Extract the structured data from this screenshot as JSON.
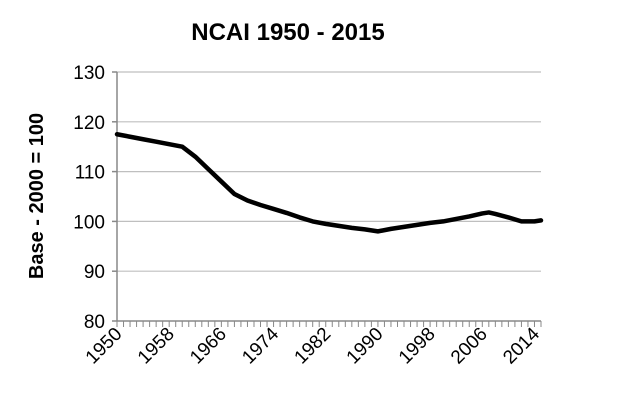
{
  "chart_data": {
    "type": "line",
    "title": "NCAI 1950 - 2015",
    "xlabel": "",
    "ylabel": "Base - 2000 = 100",
    "xlim": [
      1950,
      2015
    ],
    "ylim": [
      80,
      130
    ],
    "y_ticks": [
      80,
      90,
      100,
      110,
      120,
      130
    ],
    "x_tick_labels": [
      "1950",
      "1958",
      "1966",
      "1974",
      "1982",
      "1990",
      "1998",
      "2006",
      "2014"
    ],
    "grid": "horizontal",
    "legend": "none",
    "line_color": "#000000",
    "grid_color": "#bfbfbf",
    "series": [
      {
        "x": [
          1950,
          1952,
          1954,
          1956,
          1958,
          1960,
          1962,
          1964,
          1966,
          1968,
          1970,
          1972,
          1974,
          1976,
          1978,
          1980,
          1982,
          1984,
          1986,
          1988,
          1990,
          1992,
          1994,
          1996,
          1998,
          2000,
          2002,
          2004,
          2006,
          2007,
          2008,
          2010,
          2012,
          2014,
          2015
        ],
        "y": [
          117.5,
          117.0,
          116.5,
          116.0,
          115.5,
          115.0,
          113.0,
          110.5,
          108.0,
          105.5,
          104.2,
          103.3,
          102.5,
          101.7,
          100.8,
          100.0,
          99.5,
          99.1,
          98.7,
          98.4,
          98.0,
          98.5,
          98.9,
          99.3,
          99.7,
          100.0,
          100.5,
          101.0,
          101.6,
          101.8,
          101.5,
          100.8,
          100.0,
          100.0,
          100.2
        ]
      }
    ]
  }
}
